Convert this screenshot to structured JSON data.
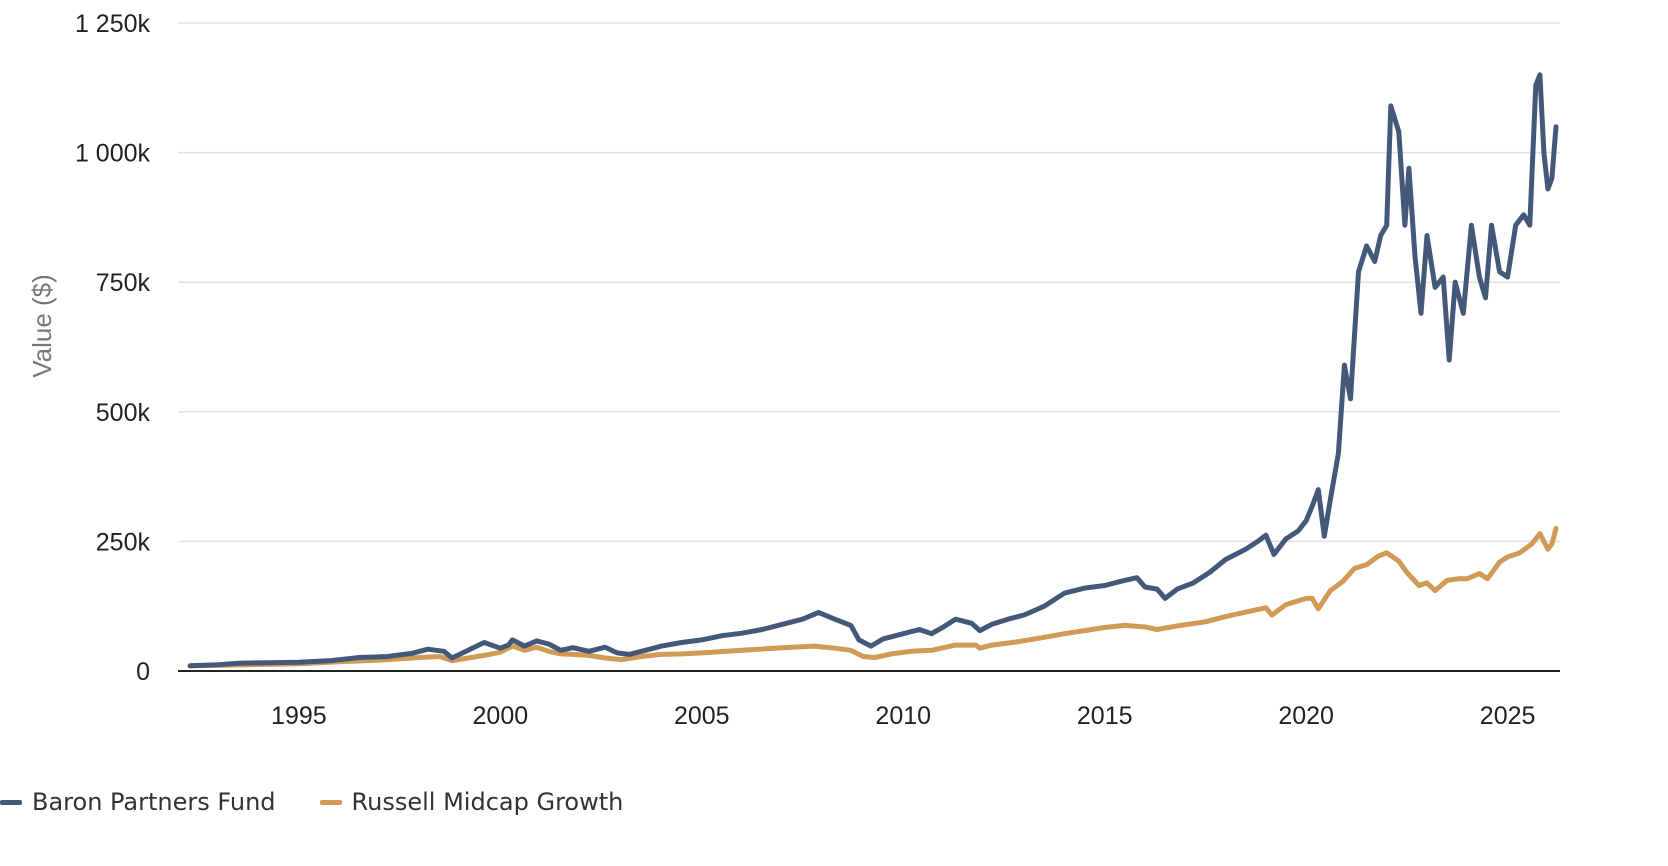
{
  "chart_data": {
    "type": "line",
    "title": "",
    "xlabel": "",
    "ylabel": "Value ($)",
    "xlim": [
      1992.0,
      2026.3
    ],
    "ylim": [
      0,
      1250000
    ],
    "grid": true,
    "legend_position": "bottom-left",
    "x_ticks": [
      1995,
      2000,
      2005,
      2010,
      2015,
      2020,
      2025
    ],
    "x_tick_labels": [
      "1995",
      "2000",
      "2005",
      "2010",
      "2015",
      "2020",
      "2025"
    ],
    "y_ticks": [
      0,
      250000,
      500000,
      750000,
      1000000,
      1250000
    ],
    "y_tick_labels": [
      "0",
      "250k",
      "500k",
      "750k",
      "1 000k",
      "1 250k"
    ],
    "series": [
      {
        "name": "Baron Partners Fund",
        "color": "#44597a",
        "points": [
          [
            1992.3,
            10000
          ],
          [
            1993.0,
            12000
          ],
          [
            1993.5,
            15000
          ],
          [
            1994.2,
            16000
          ],
          [
            1995.0,
            17000
          ],
          [
            1995.8,
            20000
          ],
          [
            1996.5,
            26000
          ],
          [
            1997.2,
            28000
          ],
          [
            1997.8,
            34000
          ],
          [
            1998.2,
            42000
          ],
          [
            1998.6,
            38000
          ],
          [
            1998.8,
            25000
          ],
          [
            1999.2,
            40000
          ],
          [
            1999.6,
            55000
          ],
          [
            2000.0,
            44000
          ],
          [
            2000.2,
            50000
          ],
          [
            2000.3,
            60000
          ],
          [
            2000.6,
            48000
          ],
          [
            2000.9,
            58000
          ],
          [
            2001.2,
            52000
          ],
          [
            2001.5,
            40000
          ],
          [
            2001.8,
            45000
          ],
          [
            2002.2,
            38000
          ],
          [
            2002.6,
            46000
          ],
          [
            2002.9,
            35000
          ],
          [
            2003.2,
            32000
          ],
          [
            2003.6,
            40000
          ],
          [
            2004.0,
            48000
          ],
          [
            2004.5,
            55000
          ],
          [
            2005.0,
            60000
          ],
          [
            2005.5,
            68000
          ],
          [
            2006.0,
            73000
          ],
          [
            2006.5,
            80000
          ],
          [
            2007.0,
            90000
          ],
          [
            2007.5,
            100000
          ],
          [
            2007.9,
            113000
          ],
          [
            2008.3,
            100000
          ],
          [
            2008.7,
            88000
          ],
          [
            2008.9,
            60000
          ],
          [
            2009.2,
            48000
          ],
          [
            2009.5,
            62000
          ],
          [
            2010.0,
            72000
          ],
          [
            2010.4,
            80000
          ],
          [
            2010.7,
            72000
          ],
          [
            2011.0,
            85000
          ],
          [
            2011.3,
            100000
          ],
          [
            2011.7,
            92000
          ],
          [
            2011.9,
            78000
          ],
          [
            2012.2,
            90000
          ],
          [
            2012.6,
            100000
          ],
          [
            2013.0,
            108000
          ],
          [
            2013.5,
            125000
          ],
          [
            2014.0,
            150000
          ],
          [
            2014.5,
            160000
          ],
          [
            2015.0,
            165000
          ],
          [
            2015.5,
            175000
          ],
          [
            2015.8,
            180000
          ],
          [
            2016.0,
            162000
          ],
          [
            2016.3,
            158000
          ],
          [
            2016.5,
            140000
          ],
          [
            2016.8,
            158000
          ],
          [
            2017.2,
            170000
          ],
          [
            2017.6,
            190000
          ],
          [
            2018.0,
            215000
          ],
          [
            2018.5,
            235000
          ],
          [
            2018.8,
            250000
          ],
          [
            2019.0,
            262000
          ],
          [
            2019.2,
            225000
          ],
          [
            2019.5,
            255000
          ],
          [
            2019.8,
            270000
          ],
          [
            2020.0,
            290000
          ],
          [
            2020.15,
            318000
          ],
          [
            2020.3,
            350000
          ],
          [
            2020.45,
            260000
          ],
          [
            2020.6,
            330000
          ],
          [
            2020.8,
            420000
          ],
          [
            2020.95,
            590000
          ],
          [
            2021.1,
            525000
          ],
          [
            2021.3,
            770000
          ],
          [
            2021.5,
            820000
          ],
          [
            2021.7,
            790000
          ],
          [
            2021.85,
            840000
          ],
          [
            2022.0,
            860000
          ],
          [
            2022.1,
            1090000
          ],
          [
            2022.3,
            1040000
          ],
          [
            2022.45,
            860000
          ],
          [
            2022.55,
            970000
          ],
          [
            2022.7,
            800000
          ],
          [
            2022.85,
            690000
          ],
          [
            2023.0,
            840000
          ],
          [
            2023.2,
            740000
          ],
          [
            2023.4,
            760000
          ],
          [
            2023.55,
            600000
          ],
          [
            2023.7,
            750000
          ],
          [
            2023.9,
            690000
          ],
          [
            2024.1,
            860000
          ],
          [
            2024.3,
            760000
          ],
          [
            2024.45,
            720000
          ],
          [
            2024.6,
            860000
          ],
          [
            2024.8,
            770000
          ],
          [
            2025.0,
            760000
          ],
          [
            2025.2,
            860000
          ],
          [
            2025.4,
            880000
          ],
          [
            2025.55,
            860000
          ],
          [
            2025.7,
            1130000
          ],
          [
            2025.8,
            1150000
          ],
          [
            2025.9,
            1000000
          ],
          [
            2026.0,
            930000
          ],
          [
            2026.1,
            950000
          ],
          [
            2026.2,
            1050000
          ]
        ]
      },
      {
        "name": "Russell Midcap Growth",
        "color": "#d19a57",
        "points": [
          [
            1992.3,
            10000
          ],
          [
            1993.0,
            11000
          ],
          [
            1994.0,
            12500
          ],
          [
            1995.0,
            14000
          ],
          [
            1996.0,
            18000
          ],
          [
            1997.0,
            21000
          ],
          [
            1998.0,
            26000
          ],
          [
            1998.5,
            28000
          ],
          [
            1998.8,
            20000
          ],
          [
            1999.2,
            25000
          ],
          [
            1999.6,
            30000
          ],
          [
            2000.0,
            36000
          ],
          [
            2000.3,
            48000
          ],
          [
            2000.6,
            40000
          ],
          [
            2000.9,
            46000
          ],
          [
            2001.2,
            38000
          ],
          [
            2001.5,
            33000
          ],
          [
            2001.8,
            32000
          ],
          [
            2002.2,
            30000
          ],
          [
            2002.6,
            25000
          ],
          [
            2003.0,
            22000
          ],
          [
            2003.5,
            28000
          ],
          [
            2004.0,
            32000
          ],
          [
            2004.5,
            33000
          ],
          [
            2005.0,
            35000
          ],
          [
            2006.0,
            40000
          ],
          [
            2007.0,
            45000
          ],
          [
            2007.8,
            48000
          ],
          [
            2008.3,
            44000
          ],
          [
            2008.7,
            40000
          ],
          [
            2009.0,
            28000
          ],
          [
            2009.3,
            26000
          ],
          [
            2009.7,
            33000
          ],
          [
            2010.2,
            38000
          ],
          [
            2010.7,
            40000
          ],
          [
            2011.3,
            50000
          ],
          [
            2011.8,
            50000
          ],
          [
            2011.9,
            44000
          ],
          [
            2012.2,
            50000
          ],
          [
            2012.8,
            56000
          ],
          [
            2013.5,
            65000
          ],
          [
            2014.0,
            72000
          ],
          [
            2014.5,
            78000
          ],
          [
            2015.0,
            84000
          ],
          [
            2015.5,
            88000
          ],
          [
            2016.0,
            85000
          ],
          [
            2016.3,
            80000
          ],
          [
            2016.8,
            87000
          ],
          [
            2017.5,
            95000
          ],
          [
            2018.0,
            105000
          ],
          [
            2018.7,
            117000
          ],
          [
            2019.0,
            122000
          ],
          [
            2019.15,
            108000
          ],
          [
            2019.5,
            128000
          ],
          [
            2020.0,
            140000
          ],
          [
            2020.15,
            140000
          ],
          [
            2020.3,
            120000
          ],
          [
            2020.6,
            155000
          ],
          [
            2020.9,
            172000
          ],
          [
            2021.2,
            198000
          ],
          [
            2021.5,
            205000
          ],
          [
            2021.8,
            222000
          ],
          [
            2022.0,
            228000
          ],
          [
            2022.3,
            212000
          ],
          [
            2022.5,
            190000
          ],
          [
            2022.8,
            165000
          ],
          [
            2023.0,
            170000
          ],
          [
            2023.2,
            155000
          ],
          [
            2023.5,
            175000
          ],
          [
            2023.8,
            178000
          ],
          [
            2024.0,
            178000
          ],
          [
            2024.3,
            188000
          ],
          [
            2024.5,
            178000
          ],
          [
            2024.8,
            210000
          ],
          [
            2025.0,
            220000
          ],
          [
            2025.3,
            228000
          ],
          [
            2025.6,
            245000
          ],
          [
            2025.8,
            265000
          ],
          [
            2026.0,
            235000
          ],
          [
            2026.1,
            245000
          ],
          [
            2026.2,
            275000
          ]
        ]
      }
    ]
  }
}
